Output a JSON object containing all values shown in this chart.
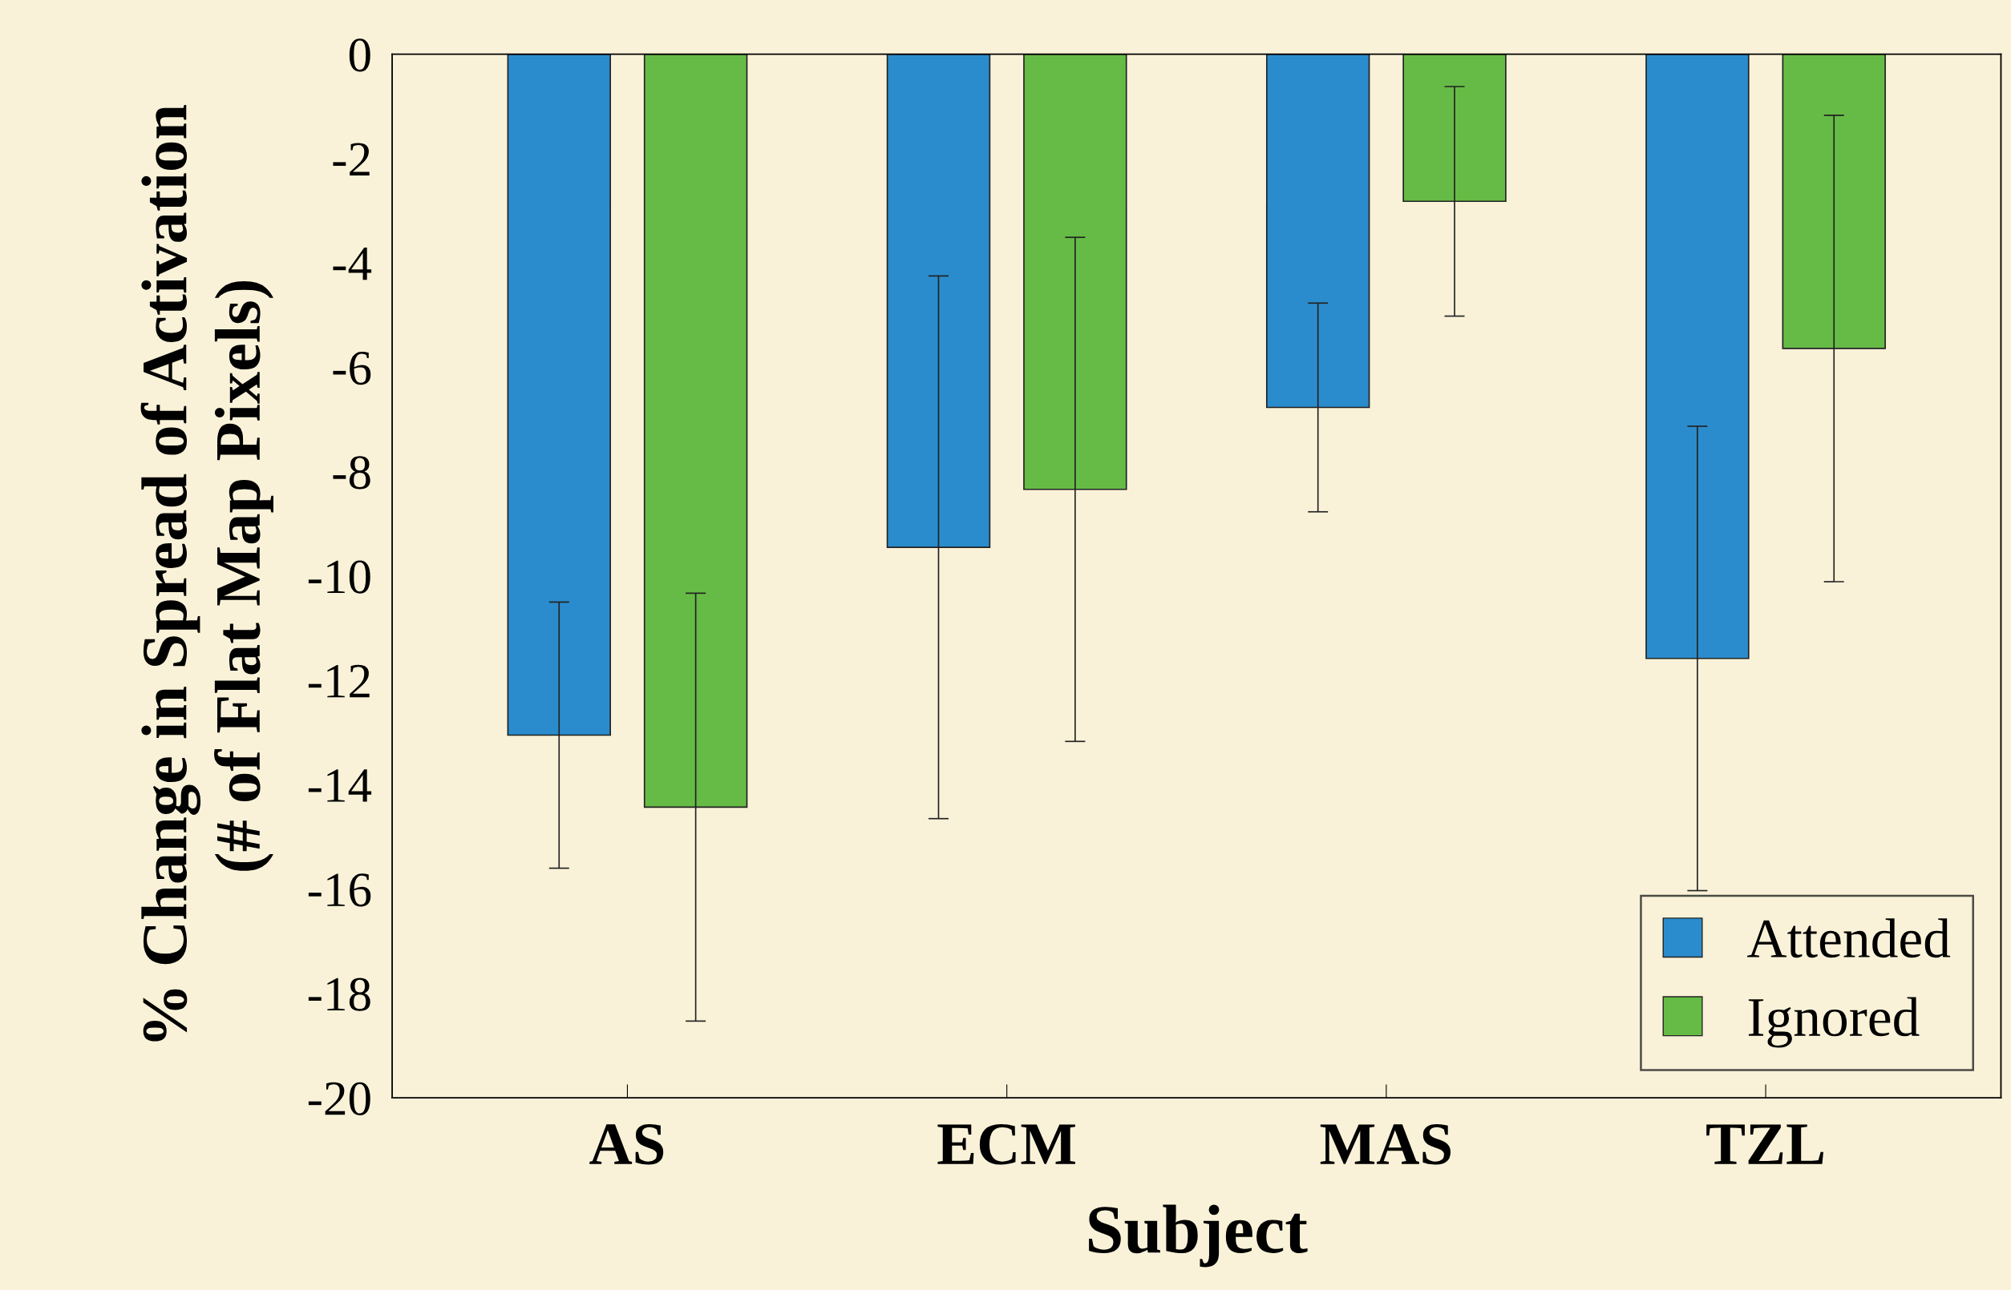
{
  "chart_data": {
    "type": "bar",
    "xlabel": "Subject",
    "ylabel": "% Change in Spread of Activation\n(# of Flat Map Pixels)",
    "categories": [
      "AS",
      "ECM",
      "MAS",
      "TZL"
    ],
    "series": [
      {
        "name": "Attended",
        "color": "#2b8ccd",
        "values": [
          -13.05,
          -9.45,
          -6.77,
          -11.58
        ],
        "errors": [
          2.55,
          5.2,
          2.0,
          4.45
        ]
      },
      {
        "name": "Ignored",
        "color": "#66bb46",
        "values": [
          -14.43,
          -8.34,
          -2.82,
          -5.64
        ],
        "errors": [
          4.1,
          4.83,
          2.2,
          4.47
        ]
      }
    ],
    "ylim": [
      -20,
      0
    ],
    "yticks": [
      -20,
      -18,
      -16,
      -14,
      -12,
      -10,
      -8,
      -6,
      -4,
      -2,
      0
    ],
    "grid": false,
    "legend": "bottom right"
  }
}
